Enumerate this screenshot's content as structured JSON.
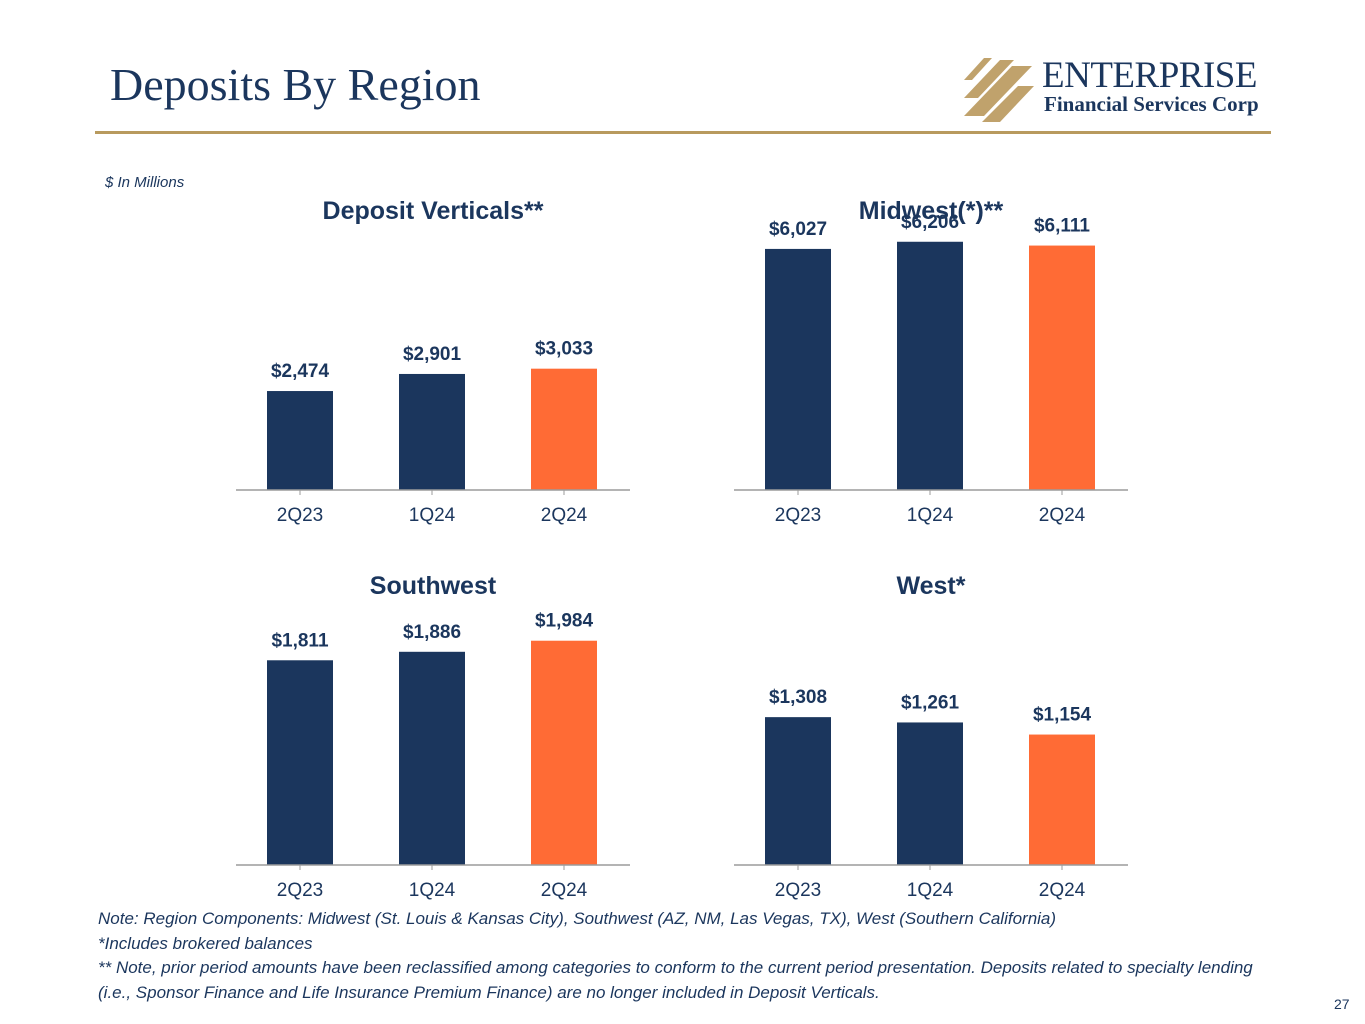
{
  "page": {
    "title": "Deposits By Region",
    "units_note": "$ In Millions",
    "page_number": "27"
  },
  "logo": {
    "name": "ENTERPRISE",
    "subtitle": "Financial Services Corp",
    "colors": {
      "mark": "#c0a26c",
      "text": "#1b365d"
    }
  },
  "colors": {
    "prior_period": "#1b365d",
    "current_period": "#ff6b35",
    "axis": "#9b9b9b",
    "rule": "#b89a5e"
  },
  "chart_data": [
    {
      "type": "bar",
      "title": "Deposit Verticals**",
      "categories": [
        "2Q23",
        "1Q24",
        "2Q24"
      ],
      "values": [
        2474,
        2901,
        3033
      ],
      "labels": [
        "$2,474",
        "$2,901",
        "$3,033"
      ],
      "ylim": [
        0,
        6500
      ]
    },
    {
      "type": "bar",
      "title": "Midwest(*)**",
      "categories": [
        "2Q23",
        "1Q24",
        "2Q24"
      ],
      "values": [
        6027,
        6206,
        6111
      ],
      "labels": [
        "$6,027",
        "$6,206",
        "$6,111"
      ],
      "ylim": [
        0,
        6500
      ]
    },
    {
      "type": "bar",
      "title": "Southwest",
      "categories": [
        "2Q23",
        "1Q24",
        "2Q24"
      ],
      "values": [
        1811,
        1886,
        1984
      ],
      "labels": [
        "$1,811",
        "$1,886",
        "$1,984"
      ],
      "ylim": [
        0,
        2300
      ]
    },
    {
      "type": "bar",
      "title": "West*",
      "categories": [
        "2Q23",
        "1Q24",
        "2Q24"
      ],
      "values": [
        1308,
        1261,
        1154
      ],
      "labels": [
        "$1,308",
        "$1,261",
        "$1,154"
      ],
      "ylim": [
        0,
        2300
      ]
    }
  ],
  "footnotes": [
    "Note: Region Components: Midwest (St. Louis & Kansas City), Southwest (AZ, NM, Las Vegas, TX), West (Southern California)",
    "*Includes brokered balances",
    "** Note, prior period amounts have been reclassified among categories to conform to the current period presentation. Deposits related to specialty lending (i.e., Sponsor Finance and Life Insurance Premium Finance) are no longer included in Deposit Verticals."
  ]
}
